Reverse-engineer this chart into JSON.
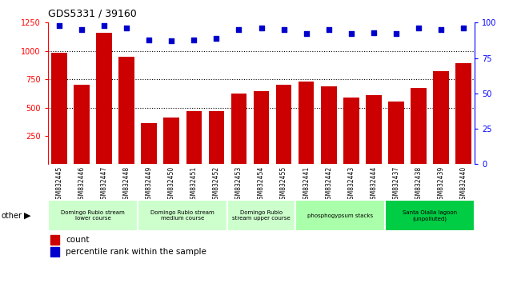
{
  "title": "GDS5331 / 39160",
  "samples": [
    "GSM832445",
    "GSM832446",
    "GSM832447",
    "GSM832448",
    "GSM832449",
    "GSM832450",
    "GSM832451",
    "GSM832452",
    "GSM832453",
    "GSM832454",
    "GSM832455",
    "GSM832441",
    "GSM832442",
    "GSM832443",
    "GSM832444",
    "GSM832437",
    "GSM832438",
    "GSM832439",
    "GSM832440"
  ],
  "counts": [
    985,
    700,
    1160,
    950,
    365,
    415,
    470,
    465,
    625,
    645,
    700,
    730,
    690,
    590,
    610,
    555,
    670,
    825,
    890
  ],
  "percentiles": [
    98,
    95,
    98,
    96,
    88,
    87,
    88,
    89,
    95,
    96,
    95,
    92,
    95,
    92,
    93,
    92,
    96,
    95,
    96
  ],
  "bar_color": "#cc0000",
  "dot_color": "#0000cc",
  "ylim_left": [
    0,
    1250
  ],
  "ylim_right": [
    0,
    100
  ],
  "yticks_left": [
    250,
    500,
    750,
    1000,
    1250
  ],
  "yticks_right": [
    0,
    25,
    50,
    75,
    100
  ],
  "groups": [
    {
      "label": "Domingo Rubio stream\nlower course",
      "start": 0,
      "end": 3,
      "color": "#ccffcc"
    },
    {
      "label": "Domingo Rubio stream\nmedium course",
      "start": 4,
      "end": 7,
      "color": "#ccffcc"
    },
    {
      "label": "Domingo Rubio\nstream upper course",
      "start": 8,
      "end": 10,
      "color": "#ccffcc"
    },
    {
      "label": "phosphogypsum stacks",
      "start": 11,
      "end": 14,
      "color": "#aaffaa"
    },
    {
      "label": "Santa Olalla lagoon\n(unpolluted)",
      "start": 15,
      "end": 18,
      "color": "#00cc44"
    }
  ],
  "legend_count_label": "count",
  "legend_pct_label": "percentile rank within the sample",
  "other_label": "other",
  "background_color": "#ffffff",
  "tick_label_bg": "#cccccc",
  "grid_lines": [
    500,
    750,
    1000
  ],
  "bar_width": 0.7
}
